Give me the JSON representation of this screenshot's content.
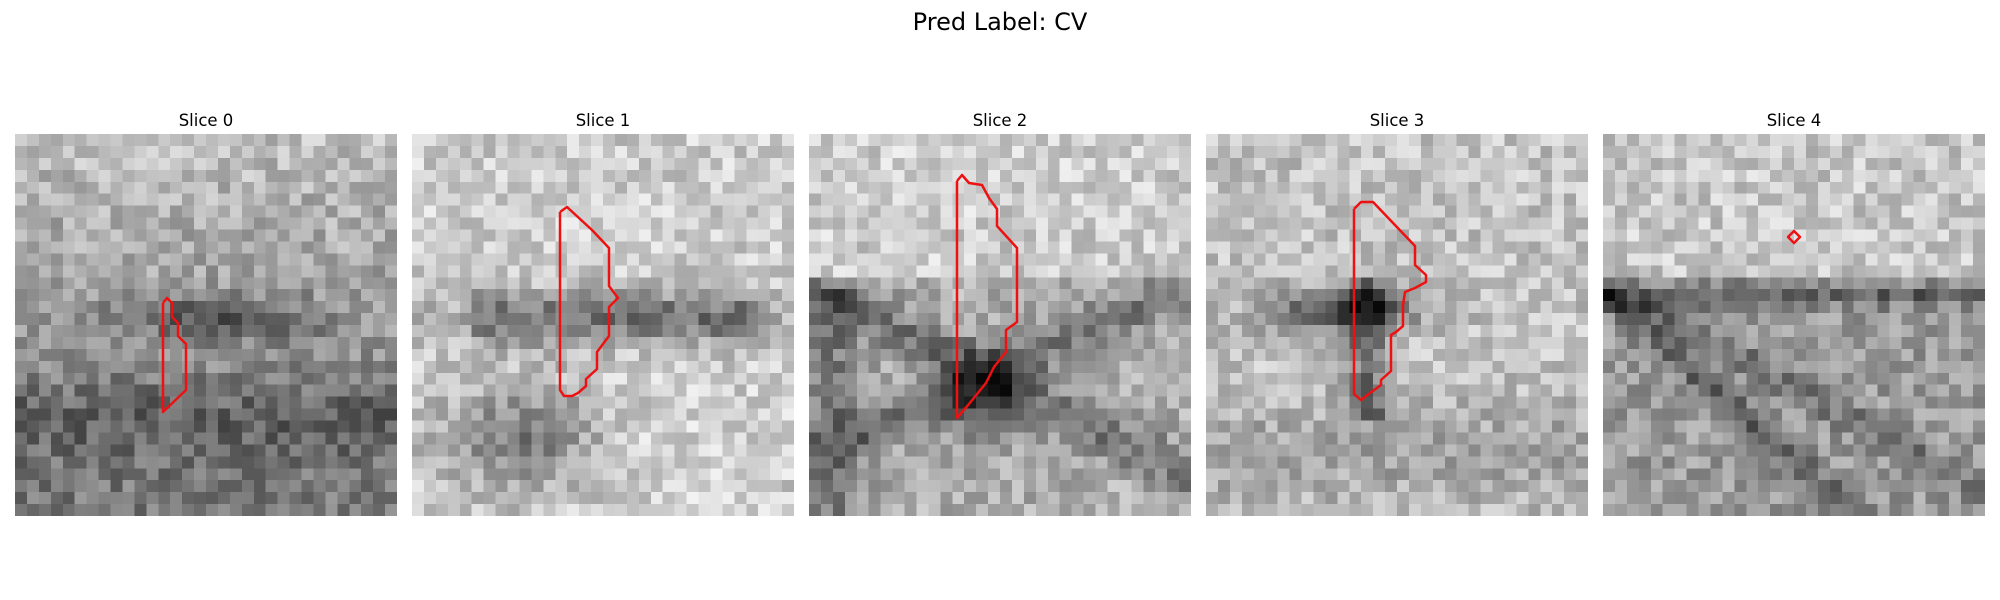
{
  "figure": {
    "title": "Pred Label: CV"
  },
  "panels": [
    {
      "label": "Slice 0"
    },
    {
      "label": "Slice 1"
    },
    {
      "label": "Slice 2"
    },
    {
      "label": "Slice 3"
    },
    {
      "label": "Slice 4"
    }
  ],
  "colors": {
    "contour": "#ee1111",
    "background": "#ffffff"
  },
  "colormap": "gray"
}
